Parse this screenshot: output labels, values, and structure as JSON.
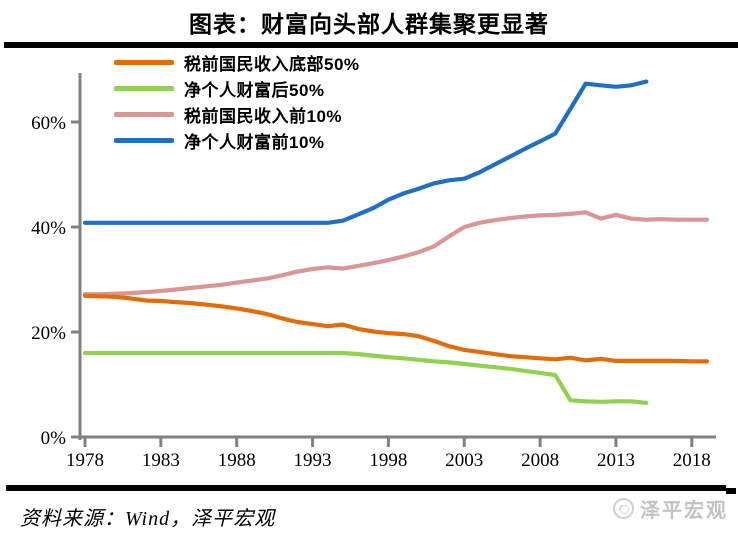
{
  "page": {
    "background": "#ffffff"
  },
  "header": {
    "title": "图表：财富向头部人群集聚更显著"
  },
  "footer": {
    "source_note": "资料来源：Wind，泽平宏观",
    "brand_name": "泽平宏观"
  },
  "chart_data": {
    "type": "line",
    "title": "图表：财富向头部人群集聚更显著",
    "xlabel": "",
    "ylabel": "",
    "ylim": [
      0,
      70
    ],
    "xlim": [
      1978,
      2019.5
    ],
    "grid": false,
    "legend_position": "top-left",
    "axis_color": "#808080",
    "ytick_values": [
      0,
      20,
      40,
      60
    ],
    "ytick_labels": [
      "0%",
      "20%",
      "40%",
      "60%"
    ],
    "xtick_values": [
      1978,
      1983,
      1988,
      1993,
      1998,
      2003,
      2008,
      2013,
      2018
    ],
    "xtick_labels": [
      "1978",
      "1983",
      "1988",
      "1993",
      "1998",
      "2003",
      "2008",
      "2013",
      "2018"
    ],
    "draw_order": [
      2,
      1,
      0,
      3
    ],
    "series": [
      {
        "name": "税前国民收入底部50%",
        "color": "#E36C0A",
        "x": [
          1978,
          1979,
          1980,
          1981,
          1982,
          1983,
          1984,
          1985,
          1986,
          1987,
          1988,
          1989,
          1990,
          1991,
          1992,
          1993,
          1994,
          1995,
          1996,
          1997,
          1998,
          1999,
          2000,
          2001,
          2002,
          2003,
          2004,
          2005,
          2006,
          2007,
          2008,
          2009,
          2010,
          2011,
          2012,
          2013,
          2014,
          2015,
          2016,
          2017,
          2018,
          2019
        ],
        "values": [
          26.9,
          26.8,
          26.7,
          26.4,
          26.0,
          25.9,
          25.7,
          25.5,
          25.2,
          24.9,
          24.5,
          24.0,
          23.4,
          22.6,
          21.9,
          21.5,
          21.1,
          21.4,
          20.6,
          20.1,
          19.8,
          19.6,
          19.2,
          18.3,
          17.3,
          16.6,
          16.2,
          15.8,
          15.4,
          15.2,
          15.0,
          14.8,
          15.1,
          14.6,
          14.9,
          14.5,
          14.5,
          14.5,
          14.5,
          14.5,
          14.4,
          14.4
        ]
      },
      {
        "name": "净个人财富后50%",
        "color": "#92D050",
        "x": [
          1978,
          1979,
          1980,
          1981,
          1982,
          1983,
          1984,
          1985,
          1986,
          1987,
          1988,
          1989,
          1990,
          1991,
          1992,
          1993,
          1994,
          1995,
          1996,
          1997,
          1998,
          1999,
          2000,
          2001,
          2002,
          2003,
          2004,
          2005,
          2006,
          2007,
          2008,
          2009,
          2010,
          2011,
          2012,
          2013,
          2014,
          2015
        ],
        "values": [
          16.0,
          16.0,
          16.0,
          16.0,
          16.0,
          16.0,
          16.0,
          16.0,
          16.0,
          16.0,
          16.0,
          16.0,
          16.0,
          16.0,
          16.0,
          16.0,
          16.0,
          16.0,
          15.8,
          15.5,
          15.2,
          15.0,
          14.7,
          14.4,
          14.2,
          13.9,
          13.6,
          13.3,
          13.0,
          12.6,
          12.2,
          11.8,
          7.0,
          6.8,
          6.7,
          6.8,
          6.8,
          6.5
        ]
      },
      {
        "name": "税前国民收入前10%",
        "color": "#D99694",
        "x": [
          1978,
          1979,
          1980,
          1981,
          1982,
          1983,
          1984,
          1985,
          1986,
          1987,
          1988,
          1989,
          1990,
          1991,
          1992,
          1993,
          1994,
          1995,
          1996,
          1997,
          1998,
          1999,
          2000,
          2001,
          2002,
          2003,
          2004,
          2005,
          2006,
          2007,
          2008,
          2009,
          2010,
          2011,
          2012,
          2013,
          2014,
          2015,
          2016,
          2017,
          2018,
          2019
        ],
        "values": [
          27.2,
          27.2,
          27.3,
          27.4,
          27.6,
          27.8,
          28.1,
          28.4,
          28.7,
          29.0,
          29.4,
          29.8,
          30.2,
          30.8,
          31.5,
          32.0,
          32.3,
          32.1,
          32.6,
          33.1,
          33.7,
          34.4,
          35.2,
          36.3,
          38.2,
          40.0,
          40.8,
          41.3,
          41.7,
          42.0,
          42.2,
          42.3,
          42.5,
          42.8,
          41.6,
          42.3,
          41.6,
          41.4,
          41.5,
          41.4,
          41.4,
          41.4
        ]
      },
      {
        "name": "净个人财富前10%",
        "color": "#1F6FC5",
        "x": [
          1978,
          1979,
          1980,
          1981,
          1982,
          1983,
          1984,
          1985,
          1986,
          1987,
          1988,
          1989,
          1990,
          1991,
          1992,
          1993,
          1994,
          1995,
          1996,
          1997,
          1998,
          1999,
          2000,
          2001,
          2002,
          2003,
          2004,
          2005,
          2006,
          2007,
          2008,
          2009,
          2010,
          2011,
          2012,
          2013,
          2014,
          2015
        ],
        "values": [
          40.8,
          40.8,
          40.8,
          40.8,
          40.8,
          40.8,
          40.8,
          40.8,
          40.8,
          40.8,
          40.8,
          40.8,
          40.8,
          40.8,
          40.8,
          40.8,
          40.8,
          41.2,
          42.4,
          43.6,
          45.2,
          46.4,
          47.3,
          48.3,
          48.9,
          49.2,
          50.4,
          51.9,
          53.4,
          54.9,
          56.3,
          57.8,
          62.5,
          67.3,
          67.0,
          66.7,
          67.0,
          67.7
        ]
      }
    ]
  }
}
